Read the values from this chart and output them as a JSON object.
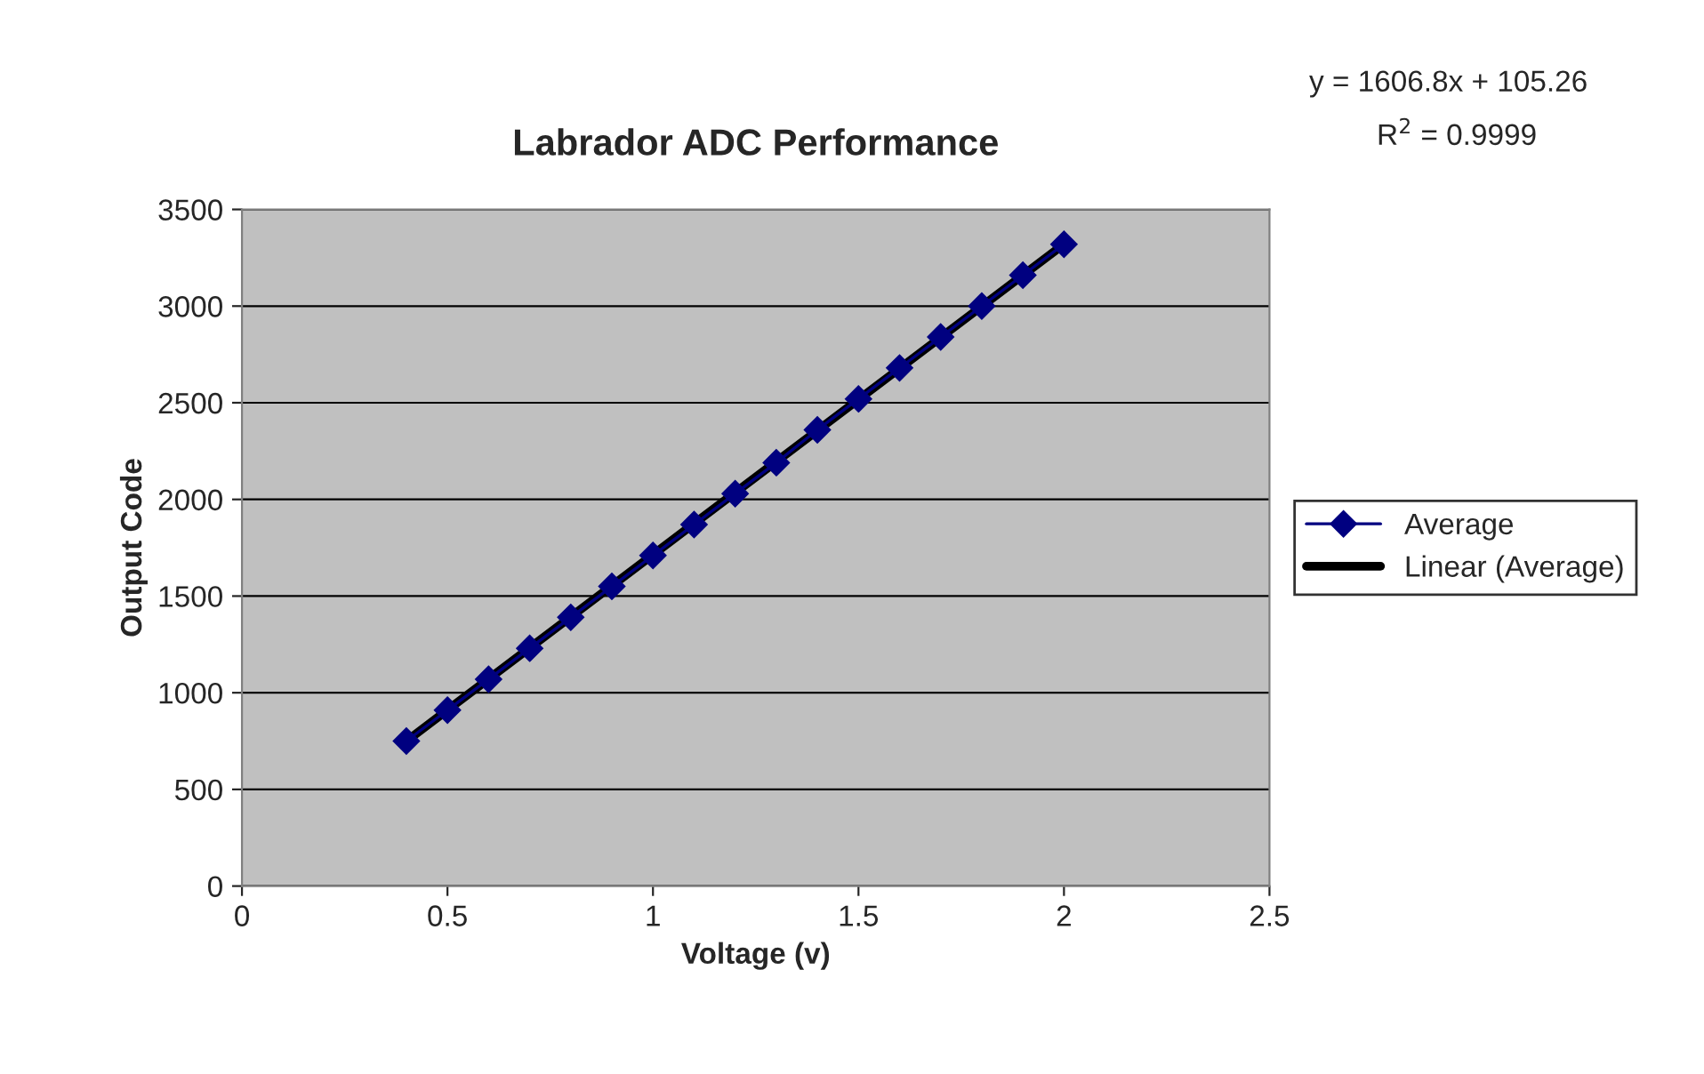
{
  "chart_data": {
    "type": "line",
    "title": "Labrador ADC Performance",
    "xlabel": "Voltage (v)",
    "ylabel": "Output Code",
    "annotations": [
      "y = 1606.8x + 105.26",
      "R$^{2}$ = 0.9999"
    ],
    "x": [
      0.4,
      0.5,
      0.6,
      0.7,
      0.8,
      0.9,
      1.0,
      1.1,
      1.2,
      1.3,
      1.4,
      1.5,
      1.6,
      1.7,
      1.8,
      1.9,
      2.0
    ],
    "series": [
      {
        "name": "Average",
        "color": "#000080",
        "marker": "diamond",
        "values": [
          750,
          910,
          1070,
          1230,
          1390,
          1550,
          1710,
          1870,
          2030,
          2190,
          2360,
          2520,
          2680,
          2840,
          3000,
          3160,
          3320
        ]
      },
      {
        "name": "Linear (Average)",
        "color": "#000000",
        "type": "line",
        "x": [
          0.4,
          2.0
        ],
        "values": [
          750,
          3320
        ]
      }
    ],
    "xlim": [
      0,
      2.5
    ],
    "xticks": [
      0,
      0.5,
      1,
      1.5,
      2,
      2.5
    ],
    "ylim": [
      0,
      3500
    ],
    "yticks": [
      0,
      500,
      1000,
      1500,
      2000,
      2500,
      3000,
      3500
    ],
    "grid": "y",
    "legend": "right"
  }
}
